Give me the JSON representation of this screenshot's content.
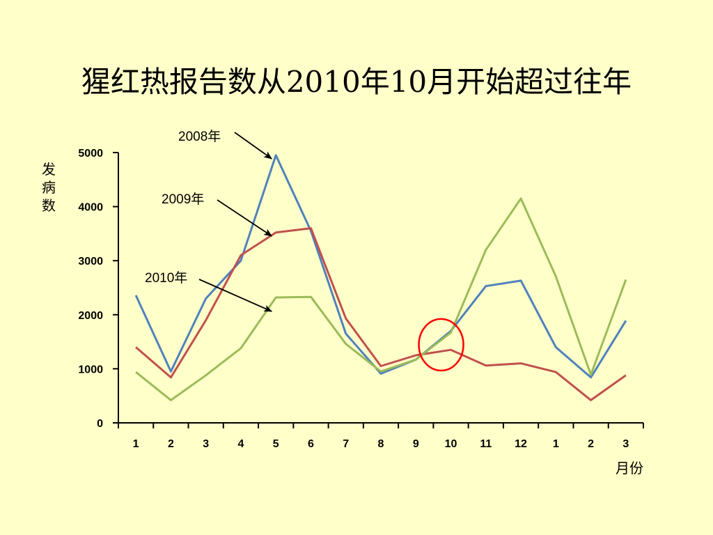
{
  "slide": {
    "title": "猩红热报告数从2010年10月开始超过往年"
  },
  "chart_data": {
    "type": "line",
    "title": "猩红热报告数从2010年10月开始超过往年",
    "xlabel": "月份",
    "ylabel": "发病数",
    "ylim": [
      0,
      5000
    ],
    "yticks": [
      0,
      1000,
      2000,
      3000,
      4000,
      5000
    ],
    "categories": [
      "1",
      "2",
      "3",
      "4",
      "5",
      "6",
      "7",
      "8",
      "9",
      "10",
      "11",
      "12",
      "1",
      "2",
      "3"
    ],
    "grid": false,
    "legend": "none",
    "series": [
      {
        "name": "2008年",
        "color": "#4f81bd",
        "values": [
          2360,
          950,
          2300,
          3000,
          4950,
          3550,
          1650,
          910,
          1170,
          1700,
          2530,
          2630,
          1400,
          840,
          1890
        ]
      },
      {
        "name": "2009年",
        "color": "#c0504d",
        "values": [
          1400,
          840,
          1900,
          3100,
          3520,
          3600,
          1930,
          1050,
          1250,
          1350,
          1060,
          1100,
          940,
          420,
          880
        ]
      },
      {
        "name": "2010年",
        "color": "#9bbb59",
        "values": [
          940,
          420,
          880,
          1380,
          2320,
          2330,
          1460,
          950,
          1170,
          1670,
          3200,
          4150,
          2710,
          890,
          2650
        ]
      }
    ],
    "annotations": [
      {
        "text": "2008年",
        "series": "2008年",
        "category_index": 4
      },
      {
        "text": "2009年",
        "series": "2009年",
        "category_index": 4
      },
      {
        "text": "2010年",
        "series": "2010年",
        "category_index": 4
      }
    ],
    "highlight": {
      "shape": "circle",
      "color": "#ff0000",
      "category_index": 9
    }
  }
}
